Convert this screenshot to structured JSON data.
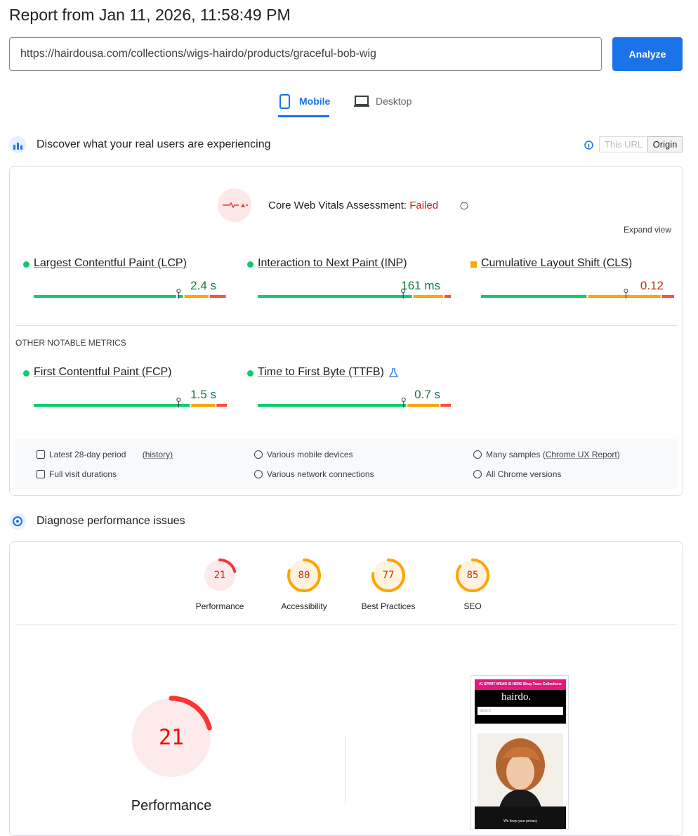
{
  "header": {
    "title": "Report from Jan 11, 2026, 11:58:49 PM",
    "url": "https://hairdousa.com/collections/wigs-hairdo/products/graceful-bob-wig",
    "analyze": "Analyze"
  },
  "tabs": [
    "Mobile",
    "Desktop"
  ],
  "field": {
    "heading": "Discover what your real users are experiencing",
    "toggle": [
      "This URL",
      "Origin"
    ],
    "assessment_label": "Core Web Vitals Assessment:",
    "assessment_result": "Failed",
    "expand": "Expand view",
    "metrics": [
      {
        "name": "Largest Contentful Paint (LCP)",
        "value": "2.4 s",
        "color": "#0cce6b"
      },
      {
        "name": "Interaction to Next Paint (INP)",
        "value": "161 ms",
        "color": "#0cce6b"
      },
      {
        "name": "Cumulative Layout Shift (CLS)",
        "value": "0.12",
        "color": "#ffa400"
      }
    ],
    "other_heading": "OTHER NOTABLE METRICS",
    "other_metrics": [
      {
        "name": "First Contentful Paint (FCP)",
        "value": "1.5 s",
        "color": "#0cce6b"
      },
      {
        "name": "Time to First Byte (TTFB)",
        "value": "0.7 s",
        "color": "#0cce6b"
      }
    ],
    "info": [
      {
        "text": "Latest 28-day period",
        "link": "(history)"
      },
      {
        "text": "Various mobile devices"
      },
      {
        "text": "Many samples (",
        "link": "Chrome UX Report",
        "after": ")"
      },
      {
        "text": "Full visit durations"
      },
      {
        "text": "Various network connections"
      },
      {
        "text": "All Chrome versions"
      }
    ]
  },
  "diagnose": {
    "heading": "Diagnose performance issues",
    "scores": [
      {
        "label": "Performance",
        "score": 21
      },
      {
        "label": "Accessibility",
        "score": 80
      },
      {
        "label": "Best Practices",
        "score": 77
      },
      {
        "label": "SEO",
        "score": 85
      }
    ],
    "screenshot": {
      "banner": "#1 SPIRIT WEAR IS HERE Shop Team Collections",
      "logo": "hairdo.",
      "search": "Search",
      "notice": "We keep your privacy"
    }
  }
}
